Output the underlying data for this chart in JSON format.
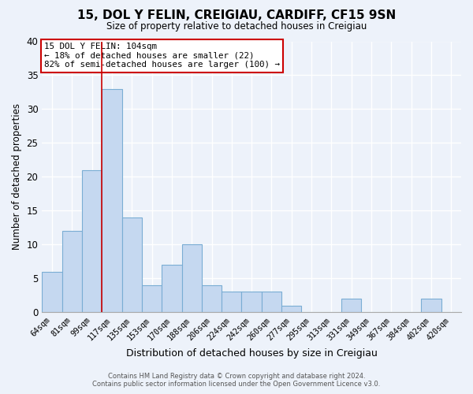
{
  "title": "15, DOL Y FELIN, CREIGIAU, CARDIFF, CF15 9SN",
  "subtitle": "Size of property relative to detached houses in Creigiau",
  "xlabel": "Distribution of detached houses by size in Creigiau",
  "ylabel": "Number of detached properties",
  "bin_labels": [
    "64sqm",
    "81sqm",
    "99sqm",
    "117sqm",
    "135sqm",
    "153sqm",
    "170sqm",
    "188sqm",
    "206sqm",
    "224sqm",
    "242sqm",
    "260sqm",
    "277sqm",
    "295sqm",
    "313sqm",
    "331sqm",
    "349sqm",
    "367sqm",
    "384sqm",
    "402sqm",
    "420sqm"
  ],
  "bar_values": [
    6,
    12,
    21,
    33,
    14,
    4,
    7,
    10,
    4,
    3,
    3,
    3,
    1,
    0,
    0,
    2,
    0,
    0,
    0,
    2,
    0
  ],
  "bar_color": "#c5d8f0",
  "bar_edge_color": "#7aadd4",
  "vline_color": "#cc0000",
  "vline_pos": 2.5,
  "ylim": [
    0,
    40
  ],
  "yticks": [
    0,
    5,
    10,
    15,
    20,
    25,
    30,
    35,
    40
  ],
  "annotation_title": "15 DOL Y FELIN: 104sqm",
  "annotation_line1": "← 18% of detached houses are smaller (22)",
  "annotation_line2": "82% of semi-detached houses are larger (100) →",
  "annotation_box_color": "#ffffff",
  "annotation_box_edgecolor": "#cc0000",
  "footer_line1": "Contains HM Land Registry data © Crown copyright and database right 2024.",
  "footer_line2": "Contains public sector information licensed under the Open Government Licence v3.0.",
  "background_color": "#edf2fa",
  "grid_color": "#ffffff"
}
